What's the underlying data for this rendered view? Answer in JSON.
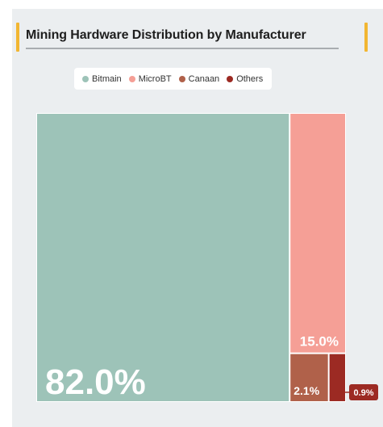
{
  "header": {
    "title": "Mining Hardware Distribution by Manufacturer"
  },
  "colors": {
    "accent": "#f2b632",
    "background": "#ebeef0"
  },
  "chart_data": {
    "type": "treemap",
    "title": "Mining Hardware Distribution by Manufacturer",
    "legend_placement": "top-center",
    "categories": [
      "Bitmain",
      "MicroBT",
      "Canaan",
      "Others"
    ],
    "values": [
      82.0,
      15.0,
      2.1,
      0.9
    ],
    "labels": [
      "82.0%",
      "15.0%",
      "2.1%",
      "0.9%"
    ],
    "colors": [
      "#9dc3b8",
      "#f59f96",
      "#b0614a",
      "#9c2a23"
    ]
  }
}
